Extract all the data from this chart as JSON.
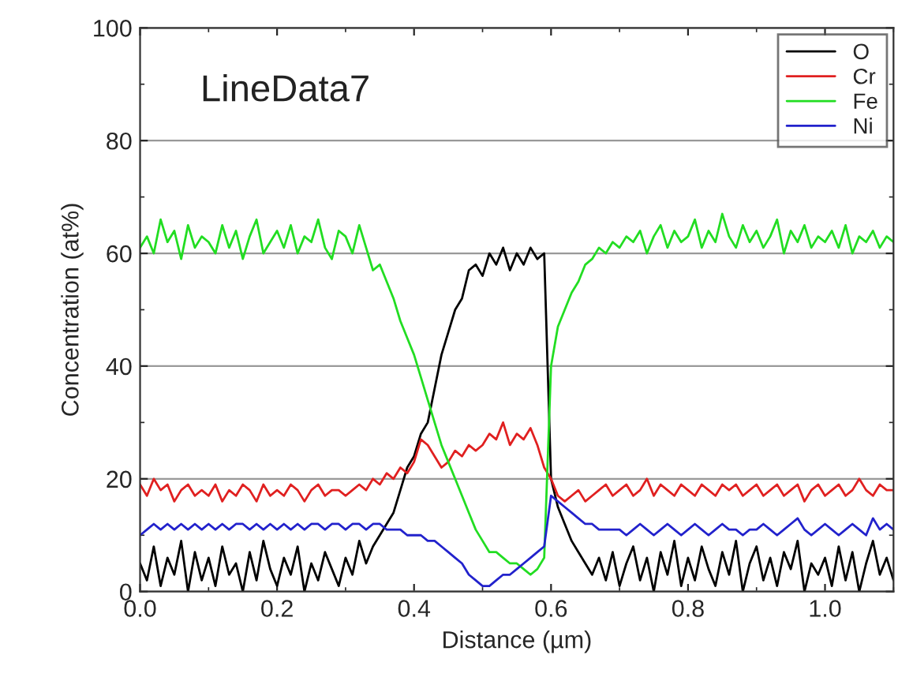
{
  "chart_data": {
    "type": "line",
    "xlabel": "Distance (µm)",
    "ylabel": "Concentration (at%)",
    "annotations": [
      "LineData7"
    ],
    "x": [
      0.0,
      0.01,
      0.02,
      0.03,
      0.04,
      0.05,
      0.06,
      0.07,
      0.08,
      0.09,
      0.1,
      0.11,
      0.12,
      0.13,
      0.14,
      0.15,
      0.16,
      0.17,
      0.18,
      0.19,
      0.2,
      0.21,
      0.22,
      0.23,
      0.24,
      0.25,
      0.26,
      0.27,
      0.28,
      0.29,
      0.3,
      0.31,
      0.32,
      0.33,
      0.34,
      0.35,
      0.36,
      0.37,
      0.38,
      0.39,
      0.4,
      0.41,
      0.42,
      0.43,
      0.44,
      0.45,
      0.46,
      0.47,
      0.48,
      0.49,
      0.5,
      0.51,
      0.52,
      0.53,
      0.54,
      0.55,
      0.56,
      0.57,
      0.58,
      0.59,
      0.6,
      0.61,
      0.62,
      0.63,
      0.64,
      0.65,
      0.66,
      0.67,
      0.68,
      0.69,
      0.7,
      0.71,
      0.72,
      0.73,
      0.74,
      0.75,
      0.76,
      0.77,
      0.78,
      0.79,
      0.8,
      0.81,
      0.82,
      0.83,
      0.84,
      0.85,
      0.86,
      0.87,
      0.88,
      0.89,
      0.9,
      0.91,
      0.92,
      0.93,
      0.94,
      0.95,
      0.96,
      0.97,
      0.98,
      0.99,
      1.0,
      1.01,
      1.02,
      1.03,
      1.04,
      1.05,
      1.06,
      1.07,
      1.08,
      1.09,
      1.1
    ],
    "series": [
      {
        "name": "O",
        "color": "#000000",
        "values": [
          5,
          2,
          8,
          1,
          6,
          3,
          9,
          0,
          7,
          2,
          6,
          1,
          8,
          3,
          5,
          0,
          7,
          2,
          9,
          4,
          1,
          6,
          3,
          8,
          0,
          5,
          2,
          7,
          4,
          1,
          6,
          3,
          9,
          5,
          8,
          10,
          12,
          14,
          18,
          22,
          24,
          28,
          30,
          36,
          42,
          46,
          50,
          52,
          57,
          58,
          56,
          60,
          58,
          61,
          57,
          60,
          58,
          61,
          59,
          60,
          20,
          15,
          12,
          9,
          7,
          5,
          3,
          6,
          2,
          7,
          1,
          5,
          8,
          2,
          6,
          0,
          7,
          3,
          9,
          1,
          6,
          2,
          8,
          4,
          1,
          7,
          3,
          9,
          0,
          5,
          8,
          2,
          6,
          1,
          7,
          4,
          9,
          0,
          5,
          3,
          6,
          1,
          8,
          2,
          7,
          0,
          5,
          9,
          3,
          6,
          2
        ]
      },
      {
        "name": "Cr",
        "color": "#e02020",
        "values": [
          19,
          17,
          20,
          18,
          19,
          16,
          18,
          19,
          17,
          18,
          17,
          19,
          16,
          18,
          17,
          19,
          18,
          16,
          19,
          17,
          18,
          17,
          19,
          18,
          16,
          18,
          19,
          17,
          18,
          18,
          17,
          18,
          19,
          18,
          20,
          19,
          21,
          20,
          22,
          21,
          23,
          27,
          26,
          24,
          22,
          23,
          25,
          24,
          26,
          25,
          26,
          28,
          27,
          30,
          26,
          28,
          27,
          29,
          26,
          22,
          20,
          17,
          16,
          17,
          18,
          16,
          17,
          18,
          19,
          17,
          18,
          19,
          17,
          18,
          20,
          17,
          19,
          18,
          17,
          19,
          18,
          17,
          19,
          18,
          17,
          19,
          18,
          19,
          17,
          18,
          19,
          17,
          18,
          19,
          17,
          18,
          19,
          16,
          18,
          19,
          17,
          18,
          19,
          17,
          18,
          20,
          18,
          17,
          19,
          18,
          18
        ]
      },
      {
        "name": "Fe",
        "color": "#22dd22",
        "values": [
          61,
          63,
          60,
          66,
          62,
          64,
          59,
          65,
          61,
          63,
          62,
          60,
          65,
          61,
          64,
          59,
          63,
          66,
          60,
          62,
          64,
          61,
          65,
          60,
          63,
          62,
          66,
          61,
          59,
          64,
          63,
          60,
          65,
          61,
          57,
          58,
          55,
          52,
          48,
          45,
          42,
          38,
          34,
          30,
          26,
          23,
          20,
          17,
          14,
          11,
          9,
          7,
          7,
          6,
          5,
          5,
          4,
          3,
          4,
          6,
          40,
          47,
          50,
          53,
          55,
          58,
          59,
          61,
          60,
          62,
          61,
          63,
          62,
          64,
          60,
          63,
          65,
          61,
          64,
          62,
          63,
          66,
          61,
          64,
          62,
          67,
          63,
          61,
          65,
          62,
          64,
          61,
          63,
          66,
          60,
          64,
          62,
          65,
          61,
          63,
          62,
          64,
          61,
          65,
          60,
          63,
          62,
          64,
          61,
          63,
          62
        ]
      },
      {
        "name": "Ni",
        "color": "#2222cc",
        "values": [
          10,
          11,
          12,
          11,
          12,
          11,
          12,
          11,
          12,
          11,
          12,
          11,
          12,
          11,
          12,
          12,
          11,
          12,
          11,
          12,
          11,
          12,
          11,
          12,
          11,
          12,
          12,
          11,
          12,
          12,
          11,
          12,
          12,
          11,
          12,
          12,
          11,
          11,
          11,
          10,
          10,
          10,
          9,
          9,
          8,
          7,
          6,
          5,
          3,
          2,
          1,
          1,
          2,
          3,
          3,
          4,
          5,
          6,
          7,
          8,
          17,
          16,
          15,
          14,
          13,
          12,
          12,
          11,
          11,
          11,
          11,
          10,
          11,
          12,
          11,
          10,
          11,
          12,
          11,
          10,
          11,
          12,
          11,
          10,
          11,
          12,
          11,
          11,
          10,
          11,
          11,
          12,
          11,
          10,
          11,
          12,
          13,
          11,
          10,
          11,
          12,
          11,
          10,
          11,
          12,
          11,
          10,
          13,
          11,
          12,
          11
        ]
      }
    ],
    "xlim": [
      0,
      1.1
    ],
    "xticks": [
      {
        "value": 0,
        "label": "0.0"
      },
      {
        "value": 0.2,
        "label": "0.2"
      },
      {
        "value": 0.4,
        "label": "0.4"
      },
      {
        "value": 0.6,
        "label": "0.6"
      },
      {
        "value": 0.8,
        "label": "0.8"
      },
      {
        "value": 1.0,
        "label": "1.0"
      }
    ],
    "ylim": [
      0,
      100
    ],
    "yticks": [
      0,
      20,
      40,
      60,
      80,
      100
    ],
    "grid": "y",
    "legend": "top right",
    "marker": "none",
    "line_style": "solid"
  }
}
